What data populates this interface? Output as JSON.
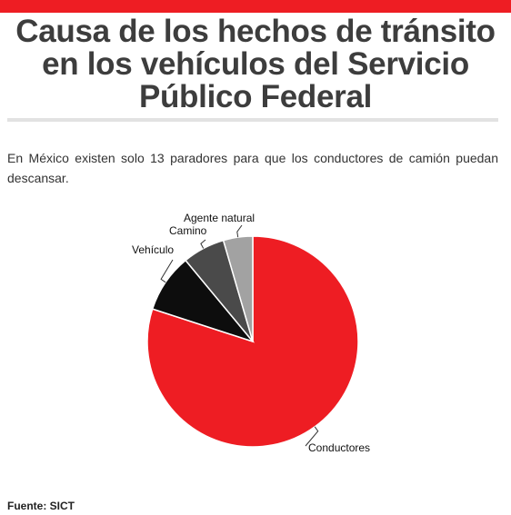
{
  "header": {
    "title": "Causa de los hechos de tránsito en los vehículos del Servicio Público Federal",
    "description": "En México existen solo 13 paradores para que los conductores de camión puedan descansar.",
    "accent_color": "#ee1d23"
  },
  "chart_data": {
    "type": "pie",
    "categories": [
      "Conductores",
      "Vehículo",
      "Camino",
      "Agente natural"
    ],
    "values": [
      80,
      9,
      6.5,
      4.5
    ],
    "colors": [
      "#ee1d23",
      "#0d0d0d",
      "#4a4a4a",
      "#a2a2a2"
    ],
    "slice_border": "#ffffff"
  },
  "footer": {
    "source": "Fuente: SICT"
  }
}
